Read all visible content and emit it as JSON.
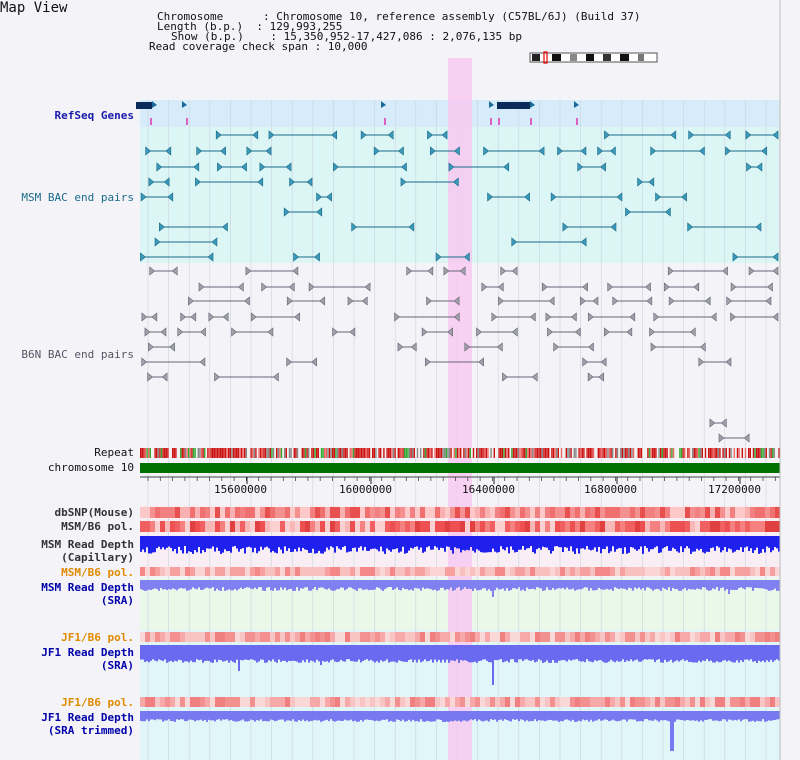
{
  "window": {
    "title": "Map View"
  },
  "header": {
    "lines": [
      "Chromosome      : Chromosome 10, reference assembly (C57BL/6J) (Build 37)",
      "Length (b.p.)  : 129,993,255",
      "Show (b.p.)    : 15,350,952-17,427,086 : 2,076,135 bp",
      "Read coverage check span : 10,000"
    ]
  },
  "tracks": {
    "refseq": "RefSeq Genes",
    "msm_bac": "MSM BAC end pairs",
    "b6n_bac": "B6N BAC end pairs",
    "repeat": "Repeat",
    "chromosome": "chromosome 10",
    "dbsnp": "dbSNP(Mouse)",
    "msm_b6_pol_1": "MSM/B6 pol.",
    "msm_depth_cap_1": "MSM Read Depth",
    "msm_depth_cap_2": "(Capillary)",
    "msm_b6_pol_2": "MSM/B6 pol.",
    "msm_depth_sra_1": "MSM Read Depth",
    "msm_depth_sra_2": "(SRA)",
    "jf1_b6_pol_1": "JF1/B6 pol.",
    "jf1_depth_sra_1": "JF1 Read Depth",
    "jf1_depth_sra_2": "(SRA)",
    "jf1_b6_pol_2": "JF1/B6 pol.",
    "jf1_depth_trim_1": "JF1 Read Depth",
    "jf1_depth_trim_2": "(SRA trimmed)"
  },
  "axis": {
    "ticks": [
      "15600000",
      "16000000",
      "16400000",
      "16800000",
      "17200000"
    ]
  },
  "colors": {
    "refseq_label": "#1a1aaa",
    "msm_label": "#1a6a8a",
    "b6n_label": "#555566",
    "pol_orange": "#e08a00",
    "depth_blue": "#0000aa",
    "highlight": "#f5c8f0"
  }
}
